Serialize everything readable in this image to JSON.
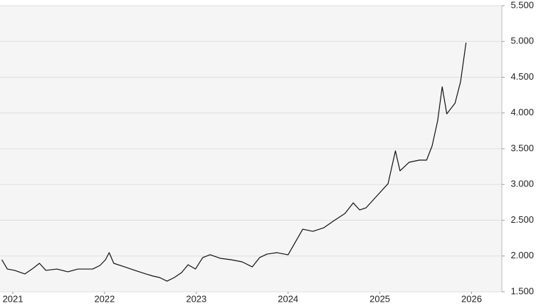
{
  "chart_data": {
    "type": "line",
    "x": [
      2020.88,
      2020.94,
      2021.02,
      2021.13,
      2021.21,
      2021.29,
      2021.36,
      2021.48,
      2021.6,
      2021.71,
      2021.79,
      2021.87,
      2021.95,
      2022.01,
      2022.05,
      2022.1,
      2022.22,
      2022.33,
      2022.45,
      2022.53,
      2022.6,
      2022.68,
      2022.76,
      2022.84,
      2022.91,
      2022.99,
      2023.07,
      2023.15,
      2023.26,
      2023.38,
      2023.5,
      2023.61,
      2023.69,
      2023.77,
      2023.88,
      2024.0,
      2024.08,
      2024.16,
      2024.27,
      2024.39,
      2024.5,
      2024.62,
      2024.71,
      2024.78,
      2024.85,
      2024.97,
      2025.09,
      2025.17,
      2025.22,
      2025.32,
      2025.43,
      2025.51,
      2025.57,
      2025.63,
      2025.68,
      2025.73,
      2025.82,
      2025.88,
      2025.94
    ],
    "series": [
      {
        "color": "#111111",
        "values": [
          1948,
          1818,
          1799,
          1749,
          1818,
          1898,
          1799,
          1818,
          1779,
          1818,
          1818,
          1818,
          1868,
          1948,
          2047,
          1898,
          1848,
          1799,
          1749,
          1719,
          1699,
          1649,
          1699,
          1769,
          1878,
          1818,
          1978,
          2018,
          1968,
          1948,
          1918,
          1848,
          1978,
          2027,
          2047,
          2017,
          2196,
          2375,
          2345,
          2395,
          2494,
          2594,
          2743,
          2644,
          2674,
          2843,
          3012,
          3470,
          3191,
          3311,
          3341,
          3341,
          3540,
          3888,
          4366,
          3988,
          4137,
          4436,
          4983
        ]
      }
    ],
    "xlim": [
      2020.86,
      2026.33
    ],
    "xticks": [
      2021,
      2022,
      2023,
      2024,
      2025,
      2026
    ],
    "ylim": [
      1500,
      5500
    ],
    "yticks": [
      {
        "value": 1500,
        "label": "1.500"
      },
      {
        "value": 2000,
        "label": "2.000"
      },
      {
        "value": 2500,
        "label": "2.500"
      },
      {
        "value": 3000,
        "label": "3.000"
      },
      {
        "value": 3500,
        "label": "3.500"
      },
      {
        "value": 4000,
        "label": "4.000"
      },
      {
        "value": 4500,
        "label": "4.500"
      },
      {
        "value": 5000,
        "label": "5.000"
      },
      {
        "value": 5500,
        "label": "5.500"
      }
    ],
    "grid": true
  }
}
